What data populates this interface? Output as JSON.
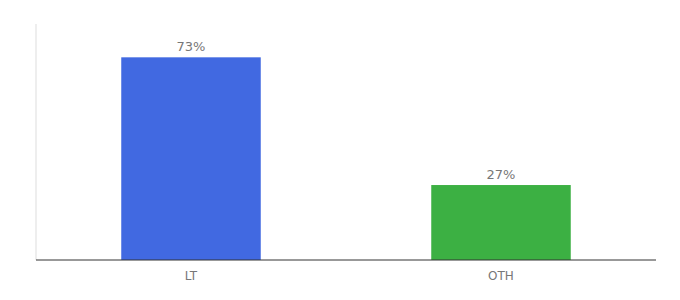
{
  "chart_data": {
    "type": "bar",
    "categories": [
      "LT",
      "OTH"
    ],
    "values": [
      73,
      27
    ],
    "value_labels": [
      "73%",
      "27%"
    ],
    "colors": [
      "#4169E1",
      "#3CB043"
    ],
    "ylim": [
      0,
      85
    ],
    "data_labels": true,
    "tick_labels": "x"
  }
}
